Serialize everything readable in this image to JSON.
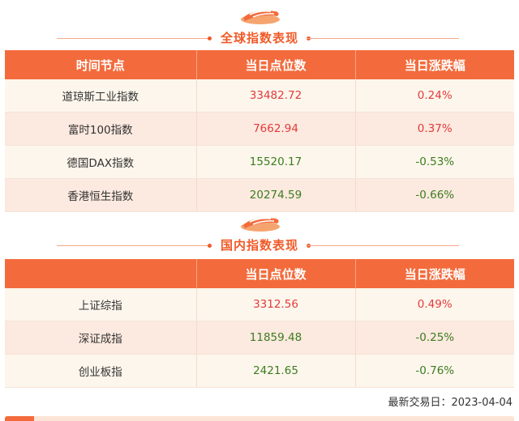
{
  "global_section": {
    "title": "全球指数表现",
    "headers": [
      "时间节点",
      "当日点位数",
      "当日涨跌幅"
    ],
    "rows": [
      {
        "name": "道琼斯工业指数",
        "value": "33482.72",
        "change": "0.24%",
        "direction": "up"
      },
      {
        "name": "富时100指数",
        "value": "7662.94",
        "change": "0.37%",
        "direction": "up"
      },
      {
        "name": "德国DAX指数",
        "value": "15520.17",
        "change": "-0.53%",
        "direction": "down"
      },
      {
        "name": "香港恒生指数",
        "value": "20274.59",
        "change": "-0.66%",
        "direction": "down"
      }
    ]
  },
  "domestic_section": {
    "title": "国内指数表现",
    "headers": [
      "",
      "当日点位数",
      "当日涨跌幅"
    ],
    "rows": [
      {
        "name": "上证综指",
        "value": "3312.56",
        "change": "0.49%",
        "direction": "up"
      },
      {
        "name": "深证成指",
        "value": "11859.48",
        "change": "-0.25%",
        "direction": "down"
      },
      {
        "name": "创业板指",
        "value": "2421.65",
        "change": "-0.76%",
        "direction": "down"
      }
    ]
  },
  "footer": {
    "last_trade_date": "最新交易日：2023-04-04"
  },
  "colors": {
    "accent": "#f36b3c",
    "up": "#e23b3b",
    "down": "#3b7d1f",
    "row_odd": "#fdf6ec",
    "row_even": "#fce9df"
  },
  "icons": {
    "section_logo": "sushi-logo-icon"
  }
}
